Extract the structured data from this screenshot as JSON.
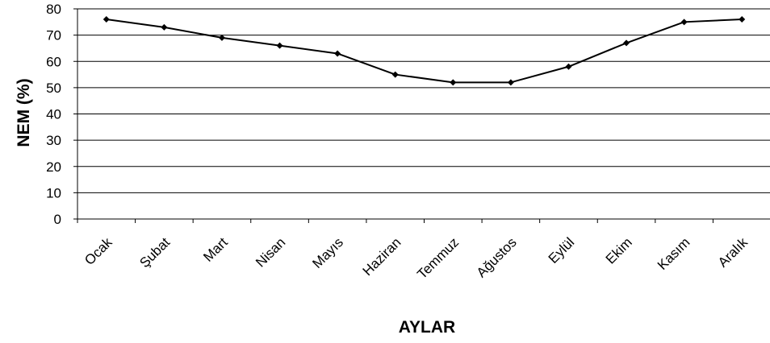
{
  "chart_data": {
    "type": "line",
    "title": "",
    "xlabel": "AYLAR",
    "ylabel": "NEM (%)",
    "ylim": [
      0,
      80
    ],
    "yticks": [
      "0",
      "10",
      "20",
      "30",
      "40",
      "50",
      "60",
      "70",
      "80"
    ],
    "categories": [
      "Ocak",
      "Şubat",
      "Mart",
      "Nisan",
      "Mayıs",
      "Haziran",
      "Temmuz",
      "Ağustos",
      "Eylül",
      "Ekim",
      "Kasım",
      "Aralık"
    ],
    "series": [
      {
        "values": [
          76,
          73,
          69,
          66,
          63,
          55,
          52,
          52,
          58,
          67,
          75,
          76
        ]
      }
    ],
    "grid": true,
    "legend": "none",
    "colors": {
      "line": "#000000",
      "grid": "#000000",
      "marker": "#000000"
    }
  }
}
